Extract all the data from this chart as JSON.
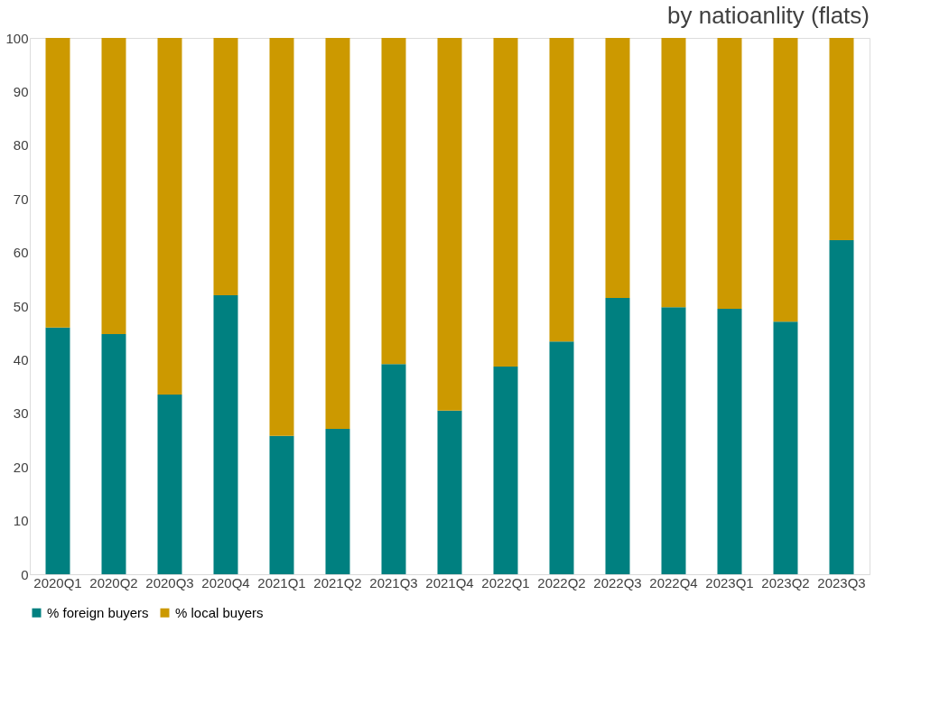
{
  "chart_data": {
    "type": "bar",
    "stacked": true,
    "title": "by natioanlity (flats)",
    "categories": [
      "2020Q1",
      "2020Q2",
      "2020Q3",
      "2020Q4",
      "2021Q1",
      "2021Q2",
      "2021Q3",
      "2021Q4",
      "2022Q1",
      "2022Q2",
      "2022Q3",
      "2022Q4",
      "2023Q1",
      "2023Q2",
      "2023Q3"
    ],
    "series": [
      {
        "name": "% foreign buyers",
        "color": "#008080",
        "values": [
          46.0,
          44.8,
          33.5,
          52.0,
          25.8,
          27.1,
          39.2,
          30.5,
          38.7,
          43.4,
          51.5,
          49.8,
          49.5,
          47.1,
          62.3
        ]
      },
      {
        "name": "% local buyers",
        "color": "#cc9900",
        "values": [
          54.0,
          55.2,
          66.5,
          48.0,
          74.2,
          72.9,
          60.8,
          69.5,
          61.3,
          56.6,
          48.5,
          50.2,
          50.5,
          52.9,
          37.7
        ]
      }
    ],
    "ylim": [
      0,
      100
    ],
    "yticks": [
      0,
      10,
      20,
      30,
      40,
      50,
      60,
      70,
      80,
      90,
      100
    ],
    "grid": false,
    "legend": "bottom"
  }
}
